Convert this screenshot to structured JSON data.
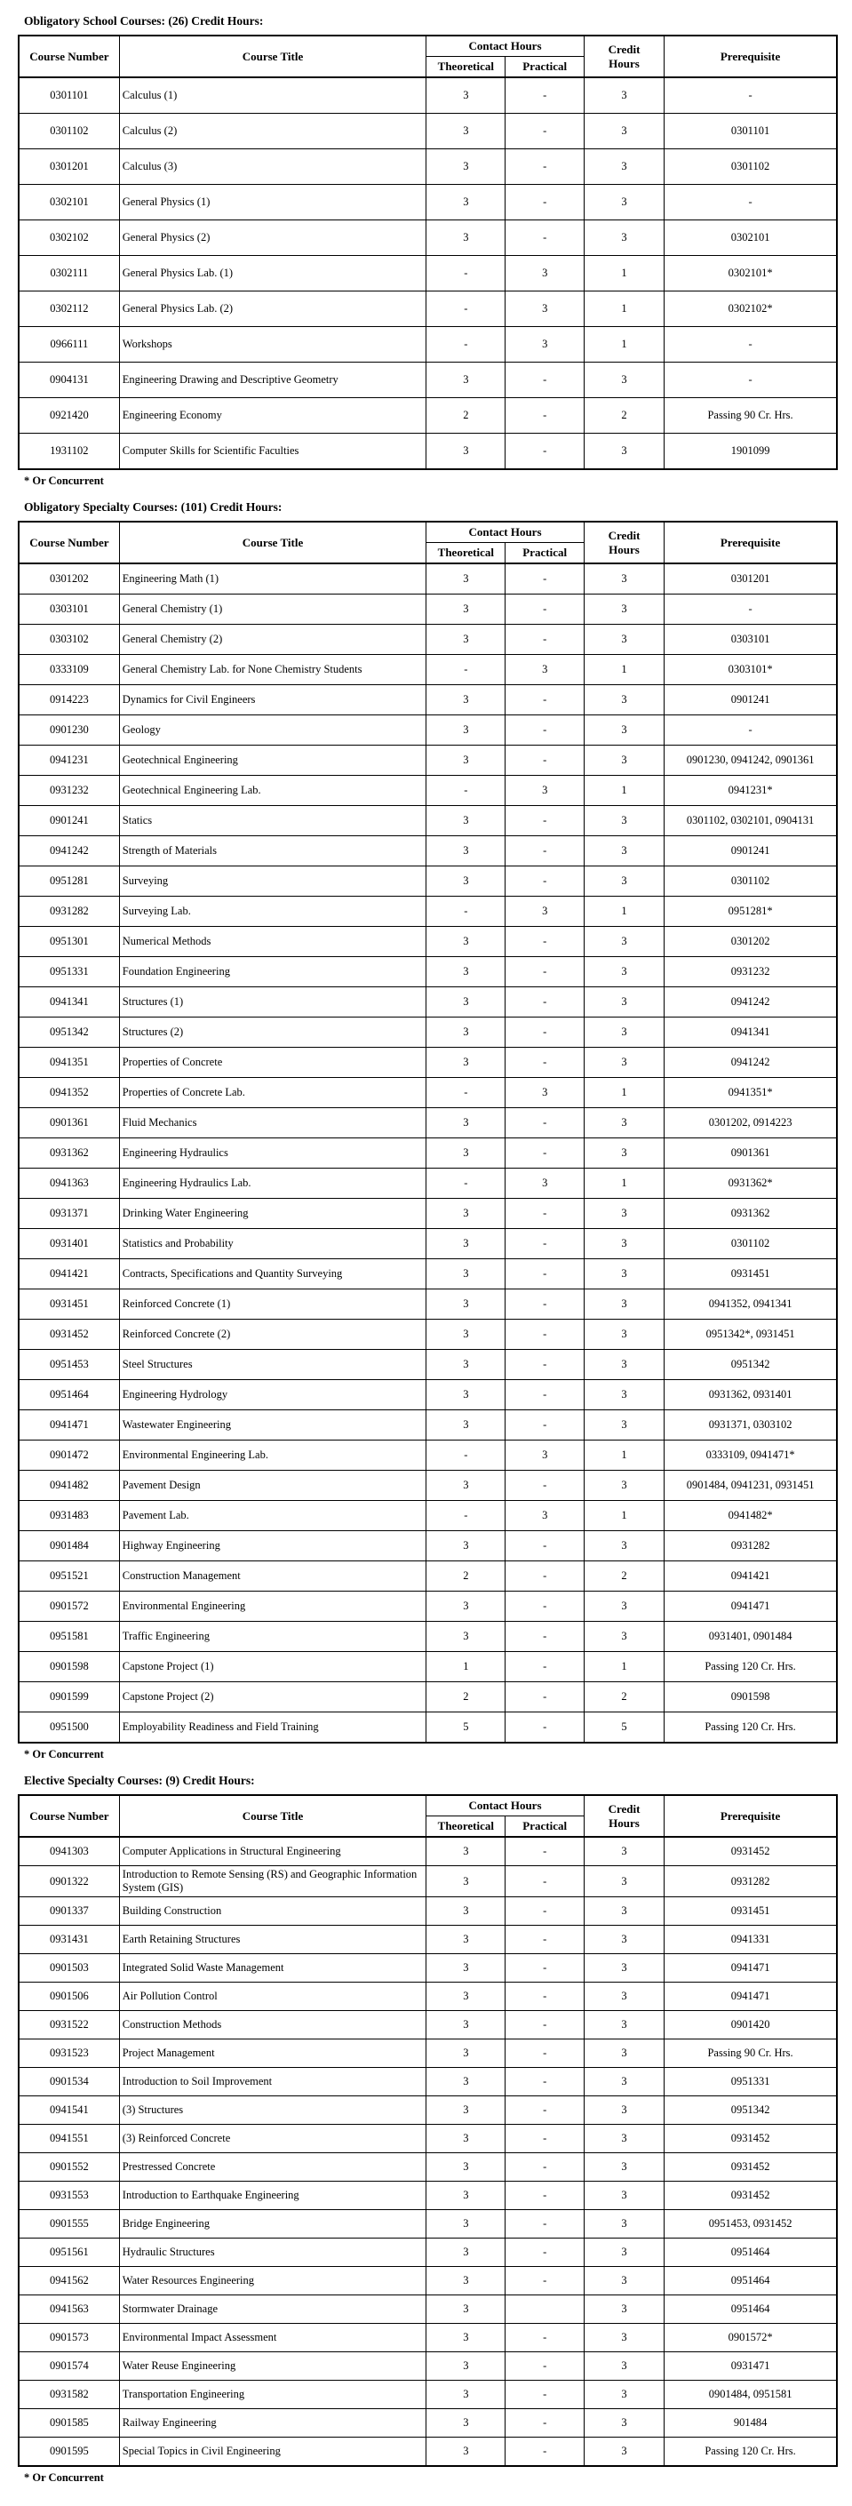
{
  "header": {
    "course_number": "Course Number",
    "course_title": "Course Title",
    "contact_hours": "Contact Hours",
    "theoretical": "Theoretical",
    "practical": "Practical",
    "credit_hours": "Credit Hours",
    "prerequisite": "Prerequisite"
  },
  "sections": {
    "school": {
      "heading": "Obligatory School Courses: (26) Credit Hours:",
      "footnote": "* Or Concurrent",
      "rows": [
        [
          "0301101",
          "Calculus (1)",
          "3",
          "-",
          "3",
          "-"
        ],
        [
          "0301102",
          "Calculus (2)",
          "3",
          "-",
          "3",
          "0301101"
        ],
        [
          "0301201",
          "Calculus (3)",
          "3",
          "-",
          "3",
          "0301102"
        ],
        [
          "0302101",
          "General Physics (1)",
          "3",
          "-",
          "3",
          "-"
        ],
        [
          "0302102",
          "General Physics (2)",
          "3",
          "-",
          "3",
          "0302101"
        ],
        [
          "0302111",
          "General Physics Lab. (1)",
          "-",
          "3",
          "1",
          "0302101*"
        ],
        [
          "0302112",
          "General Physics Lab. (2)",
          "-",
          "3",
          "1",
          "0302102*"
        ],
        [
          "0966111",
          "Workshops",
          "-",
          "3",
          "1",
          "-"
        ],
        [
          "0904131",
          "Engineering Drawing and Descriptive Geometry",
          "3",
          "-",
          "3",
          "-"
        ],
        [
          "0921420",
          "Engineering Economy",
          "2",
          "-",
          "2",
          "Passing 90 Cr. Hrs."
        ],
        [
          "1931102",
          "Computer Skills for Scientific Faculties",
          "3",
          "-",
          "3",
          "1901099"
        ]
      ]
    },
    "specialty": {
      "heading": "Obligatory Specialty Courses: (101) Credit Hours:",
      "footnote": "* Or Concurrent",
      "rows": [
        [
          "0301202",
          "Engineering Math (1)",
          "3",
          "-",
          "3",
          "0301201"
        ],
        [
          "0303101",
          "General Chemistry (1)",
          "3",
          "-",
          "3",
          "-"
        ],
        [
          "0303102",
          "General Chemistry (2)",
          "3",
          "-",
          "3",
          "0303101"
        ],
        [
          "0333109",
          "General Chemistry Lab. for None Chemistry Students",
          "-",
          "3",
          "1",
          "0303101*"
        ],
        [
          "0914223",
          "Dynamics for Civil Engineers",
          "3",
          "-",
          "3",
          "0901241"
        ],
        [
          "0901230",
          "Geology",
          "3",
          "-",
          "3",
          "-"
        ],
        [
          "0941231",
          "Geotechnical Engineering",
          "3",
          "-",
          "3",
          "0901230, 0941242, 0901361"
        ],
        [
          "0931232",
          "Geotechnical Engineering Lab.",
          "-",
          "3",
          "1",
          "0941231*"
        ],
        [
          "0901241",
          "Statics",
          "3",
          "-",
          "3",
          "0301102, 0302101, 0904131"
        ],
        [
          "0941242",
          "Strength of Materials",
          "3",
          "-",
          "3",
          "0901241"
        ],
        [
          "0951281",
          "Surveying",
          "3",
          "-",
          "3",
          "0301102"
        ],
        [
          "0931282",
          "Surveying Lab.",
          "-",
          "3",
          "1",
          "0951281*"
        ],
        [
          "0951301",
          "Numerical Methods",
          "3",
          "-",
          "3",
          "0301202"
        ],
        [
          "0951331",
          "Foundation Engineering",
          "3",
          "-",
          "3",
          "0931232"
        ],
        [
          "0941341",
          "Structures (1)",
          "3",
          "-",
          "3",
          "0941242"
        ],
        [
          "0951342",
          "Structures (2)",
          "3",
          "-",
          "3",
          "0941341"
        ],
        [
          "0941351",
          "Properties of Concrete",
          "3",
          "-",
          "3",
          "0941242"
        ],
        [
          "0941352",
          "Properties of Concrete Lab.",
          "-",
          "3",
          "1",
          "0941351*"
        ],
        [
          "0901361",
          "Fluid Mechanics",
          "3",
          "-",
          "3",
          "0301202, 0914223"
        ],
        [
          "0931362",
          "Engineering Hydraulics",
          "3",
          "-",
          "3",
          "0901361"
        ],
        [
          "0941363",
          "Engineering Hydraulics Lab.",
          "-",
          "3",
          "1",
          "0931362*"
        ],
        [
          "0931371",
          "Drinking Water Engineering",
          "3",
          "-",
          "3",
          "0931362"
        ],
        [
          "0931401",
          "Statistics and Probability",
          "3",
          "-",
          "3",
          "0301102"
        ],
        [
          "0941421",
          "Contracts, Specifications and Quantity Surveying",
          "3",
          "-",
          "3",
          "0931451"
        ],
        [
          "0931451",
          "Reinforced Concrete (1)",
          "3",
          "-",
          "3",
          "0941352, 0941341"
        ],
        [
          "0931452",
          "Reinforced Concrete (2)",
          "3",
          "-",
          "3",
          "0951342*, 0931451"
        ],
        [
          "0951453",
          "Steel Structures",
          "3",
          "-",
          "3",
          "0951342"
        ],
        [
          "0951464",
          "Engineering Hydrology",
          "3",
          "-",
          "3",
          "0931362, 0931401"
        ],
        [
          "0941471",
          "Wastewater Engineering",
          "3",
          "-",
          "3",
          "0931371, 0303102"
        ],
        [
          "0901472",
          "Environmental Engineering Lab.",
          "-",
          "3",
          "1",
          "0333109, 0941471*"
        ],
        [
          "0941482",
          "Pavement Design",
          "3",
          "-",
          "3",
          "0901484, 0941231, 0931451"
        ],
        [
          "0931483",
          "Pavement Lab.",
          "-",
          "3",
          "1",
          "0941482*"
        ],
        [
          "0901484",
          "Highway Engineering",
          "3",
          "-",
          "3",
          "0931282"
        ],
        [
          "0951521",
          "Construction Management",
          "2",
          "-",
          "2",
          "0941421"
        ],
        [
          "0901572",
          "Environmental Engineering",
          "3",
          "-",
          "3",
          "0941471"
        ],
        [
          "0951581",
          "Traffic Engineering",
          "3",
          "-",
          "3",
          "0931401, 0901484"
        ],
        [
          "0901598",
          "Capstone Project (1)",
          "1",
          "-",
          "1",
          "Passing 120 Cr. Hrs."
        ],
        [
          "0901599",
          "Capstone Project (2)",
          "2",
          "-",
          "2",
          "0901598"
        ],
        [
          "0951500",
          "Employability Readiness and Field Training",
          "5",
          "-",
          "5",
          "Passing 120 Cr. Hrs."
        ]
      ]
    },
    "elective": {
      "heading": "Elective Specialty Courses: (9) Credit Hours:",
      "footnote": "* Or Concurrent",
      "rows": [
        [
          "0941303",
          "Computer Applications in Structural Engineering",
          "3",
          "-",
          "3",
          "0931452"
        ],
        [
          "0901322",
          "Introduction to Remote Sensing (RS) and Geographic Information System (GIS)",
          "3",
          "-",
          "3",
          "0931282"
        ],
        [
          "0901337",
          "Building Construction",
          "3",
          "-",
          "3",
          "0931451"
        ],
        [
          "0931431",
          "Earth Retaining Structures",
          "3",
          "-",
          "3",
          "0941331"
        ],
        [
          "0901503",
          "Integrated Solid Waste Management",
          "3",
          "-",
          "3",
          "0941471"
        ],
        [
          "0901506",
          "Air Pollution Control",
          "3",
          "-",
          "3",
          "0941471"
        ],
        [
          "0931522",
          "Construction Methods",
          "3",
          "-",
          "3",
          "0901420"
        ],
        [
          "0931523",
          "Project Management",
          "3",
          "-",
          "3",
          "Passing 90 Cr. Hrs."
        ],
        [
          "0901534",
          "Introduction to Soil Improvement",
          "3",
          "-",
          "3",
          "0951331"
        ],
        [
          "0941541",
          "(3) Structures",
          "3",
          "-",
          "3",
          "0951342"
        ],
        [
          "0941551",
          "(3) Reinforced Concrete",
          "3",
          "-",
          "3",
          "0931452"
        ],
        [
          "0901552",
          "Prestressed Concrete",
          "3",
          "-",
          "3",
          "0931452"
        ],
        [
          "0931553",
          "Introduction to Earthquake Engineering",
          "3",
          "-",
          "3",
          "0931452"
        ],
        [
          "0901555",
          "Bridge Engineering",
          "3",
          "-",
          "3",
          "0951453, 0931452"
        ],
        [
          "0951561",
          "Hydraulic Structures",
          "3",
          "-",
          "3",
          "0951464"
        ],
        [
          "0941562",
          "Water Resources Engineering",
          "3",
          "-",
          "3",
          "0951464"
        ],
        [
          "0941563",
          "Stormwater Drainage",
          "3",
          "",
          "3",
          "0951464"
        ],
        [
          "0901573",
          "Environmental Impact Assessment",
          "3",
          "-",
          "3",
          "0901572*"
        ],
        [
          "0901574",
          "Water Reuse Engineering",
          "3",
          "-",
          "3",
          "0931471"
        ],
        [
          "0931582",
          "Transportation Engineering",
          "3",
          "-",
          "3",
          "0901484, 0951581"
        ],
        [
          "0901585",
          "Railway Engineering",
          "3",
          "-",
          "3",
          "901484"
        ],
        [
          "0901595",
          "Special Topics in Civil Engineering",
          "3",
          "-",
          "3",
          "Passing 120 Cr. Hrs."
        ]
      ]
    }
  }
}
